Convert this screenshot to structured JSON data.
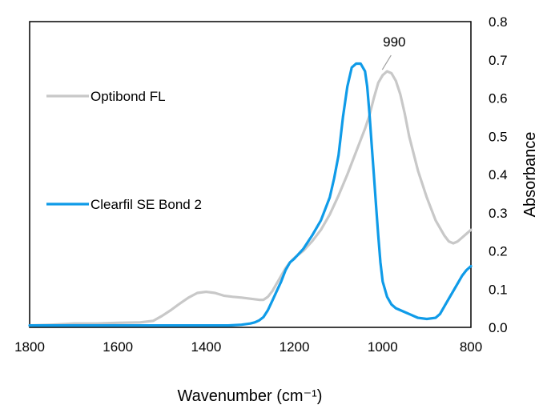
{
  "chart_data": {
    "type": "line",
    "title": "",
    "xlabel": "Wavenumber (cm⁻¹)",
    "ylabel": "Absorbance",
    "xlim": [
      1800,
      800
    ],
    "x_reversed": true,
    "ylim": [
      0,
      0.8
    ],
    "xticks": [
      "1800",
      "1600",
      "1400",
      "1200",
      "1000",
      "800"
    ],
    "yticks": [
      "0.0",
      "0.1",
      "0.2",
      "0.3",
      "0.4",
      "0.5",
      "0.6",
      "0.7",
      "0.8"
    ],
    "y_axis_side": "right",
    "grid": false,
    "legend_position": "left inside plot",
    "annotations": [
      {
        "text": "990",
        "x": 990,
        "y": 0.67
      }
    ],
    "series": [
      {
        "name": "Optibond FL",
        "color": "#c8c8c8",
        "x": [
          1800,
          1750,
          1700,
          1650,
          1600,
          1550,
          1520,
          1500,
          1480,
          1460,
          1440,
          1420,
          1400,
          1380,
          1360,
          1340,
          1320,
          1300,
          1280,
          1270,
          1260,
          1250,
          1240,
          1230,
          1220,
          1210,
          1200,
          1180,
          1160,
          1140,
          1120,
          1100,
          1080,
          1060,
          1040,
          1030,
          1020,
          1010,
          1000,
          990,
          980,
          970,
          960,
          950,
          940,
          920,
          900,
          880,
          860,
          850,
          840,
          830,
          820,
          810,
          800
        ],
        "y": [
          0.005,
          0.007,
          0.01,
          0.01,
          0.012,
          0.013,
          0.017,
          0.03,
          0.045,
          0.062,
          0.078,
          0.09,
          0.093,
          0.09,
          0.083,
          0.08,
          0.078,
          0.075,
          0.072,
          0.072,
          0.08,
          0.095,
          0.115,
          0.135,
          0.155,
          0.17,
          0.182,
          0.2,
          0.225,
          0.255,
          0.295,
          0.345,
          0.4,
          0.46,
          0.52,
          0.555,
          0.6,
          0.64,
          0.66,
          0.67,
          0.665,
          0.645,
          0.61,
          0.56,
          0.5,
          0.41,
          0.34,
          0.28,
          0.24,
          0.225,
          0.22,
          0.225,
          0.235,
          0.245,
          0.255
        ]
      },
      {
        "name": "Clearfil SE Bond 2",
        "color": "#0f9be8",
        "x": [
          1800,
          1700,
          1600,
          1500,
          1400,
          1350,
          1320,
          1300,
          1290,
          1280,
          1270,
          1260,
          1250,
          1240,
          1230,
          1220,
          1210,
          1200,
          1180,
          1160,
          1140,
          1120,
          1110,
          1100,
          1090,
          1080,
          1070,
          1060,
          1050,
          1040,
          1035,
          1030,
          1025,
          1020,
          1015,
          1010,
          1005,
          1000,
          990,
          980,
          970,
          960,
          940,
          920,
          900,
          880,
          870,
          860,
          850,
          840,
          830,
          820,
          810,
          800
        ],
        "y": [
          0.005,
          0.005,
          0.005,
          0.005,
          0.005,
          0.005,
          0.007,
          0.01,
          0.013,
          0.018,
          0.027,
          0.045,
          0.07,
          0.095,
          0.12,
          0.15,
          0.17,
          0.18,
          0.205,
          0.24,
          0.28,
          0.34,
          0.39,
          0.45,
          0.55,
          0.63,
          0.68,
          0.69,
          0.69,
          0.67,
          0.63,
          0.56,
          0.48,
          0.4,
          0.32,
          0.24,
          0.17,
          0.12,
          0.08,
          0.06,
          0.05,
          0.045,
          0.035,
          0.025,
          0.022,
          0.025,
          0.035,
          0.055,
          0.075,
          0.095,
          0.115,
          0.135,
          0.15,
          0.16
        ]
      }
    ]
  }
}
